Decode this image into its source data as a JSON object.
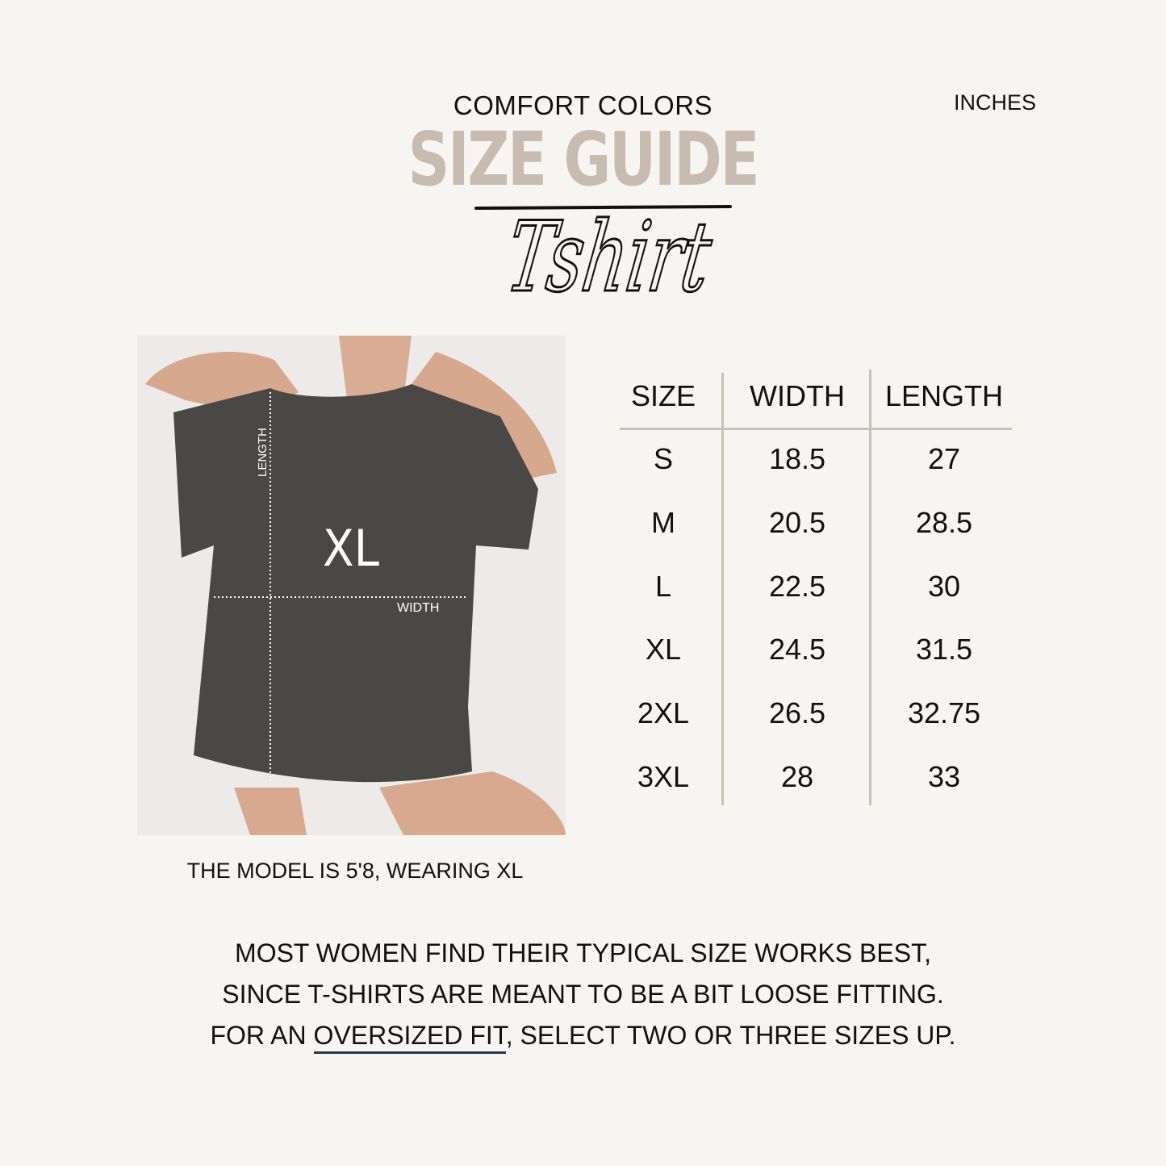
{
  "header": {
    "brand": "COMFORT COLORS",
    "units": "INCHES",
    "title": "SIZE GUIDE",
    "script_title": "Tshirt"
  },
  "photo": {
    "size_label": "XL",
    "length_label": "LENGTH",
    "width_label": "WIDTH",
    "caption": "THE MODEL IS 5'8, WEARING XL"
  },
  "table": {
    "headers": [
      "SIZE",
      "WIDTH",
      "LENGTH"
    ],
    "rows": [
      [
        "S",
        "18.5",
        "27"
      ],
      [
        "M",
        "20.5",
        "28.5"
      ],
      [
        "L",
        "22.5",
        "30"
      ],
      [
        "XL",
        "24.5",
        "31.5"
      ],
      [
        "2XL",
        "26.5",
        "32.75"
      ],
      [
        "3XL",
        "28",
        "33"
      ]
    ]
  },
  "note": {
    "line1": "MOST WOMEN FIND THEIR TYPICAL SIZE WORKS BEST,",
    "line2": "SINCE T-SHIRTS ARE MEANT TO BE A BIT LOOSE FITTING.",
    "line3_pre": "FOR AN ",
    "line3_link": "OVERSIZED FIT",
    "line3_post": ", SELECT TWO OR THREE SIZES UP."
  },
  "colors": {
    "background": "#f7f5f1",
    "title": "#c7bcaf",
    "table_lines": "#c9c1b6",
    "shirt": "#4a4845",
    "underline": "#2a3550"
  }
}
